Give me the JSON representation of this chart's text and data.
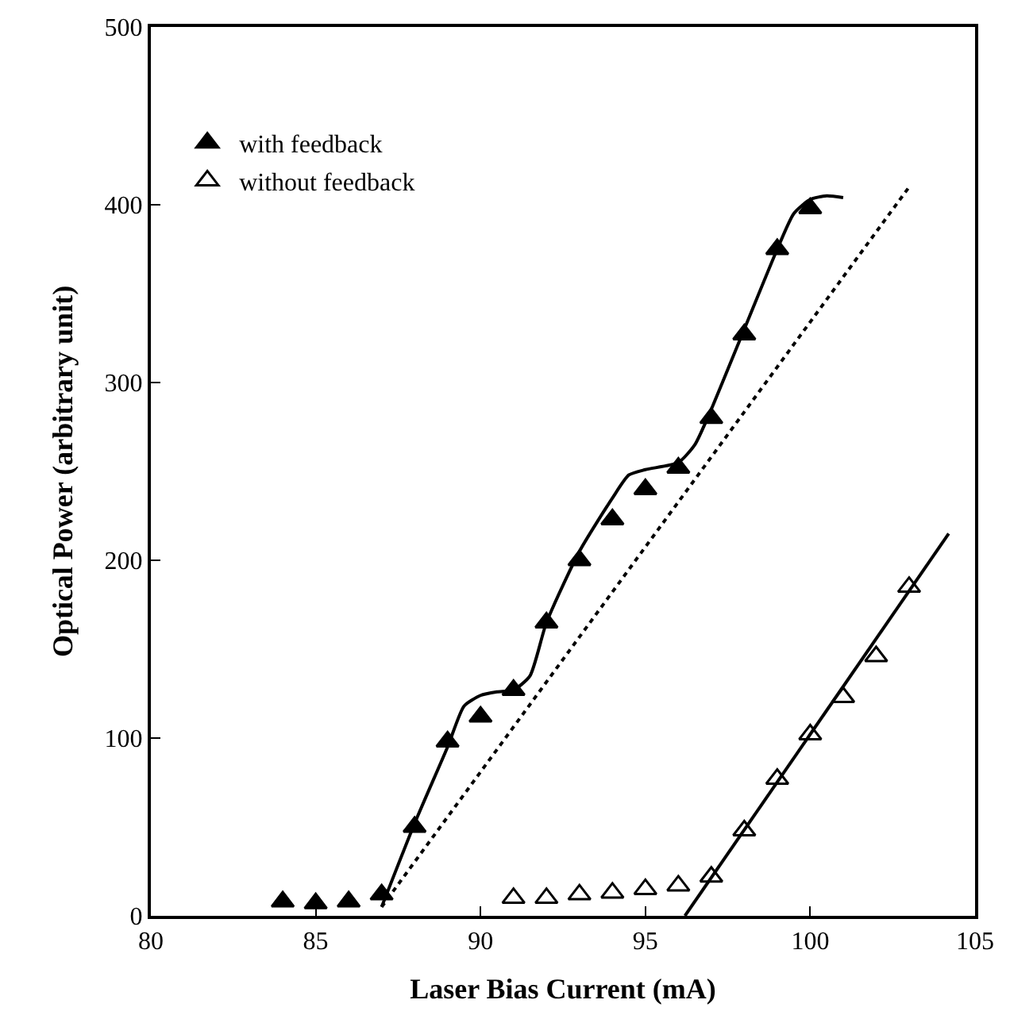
{
  "chart_data": {
    "type": "scatter",
    "xlabel": "Laser Bias Current (mA)",
    "ylabel": "Optical Power (arbitrary unit)",
    "xlim": [
      80,
      105
    ],
    "xticks": [
      80,
      85,
      90,
      95,
      100,
      105
    ],
    "ylim": [
      0,
      500
    ],
    "yticks": [
      0,
      100,
      200,
      300,
      400,
      500
    ],
    "legend": "top left",
    "series": [
      {
        "name": "with feedback",
        "color": "#000000",
        "marker": "triangle",
        "x": [
          84,
          85,
          86,
          87,
          88,
          89,
          90,
          91,
          92,
          93,
          94,
          95,
          96,
          97,
          98,
          99,
          100
        ],
        "values": [
          8,
          7,
          8,
          12,
          50,
          98,
          112,
          127,
          165,
          200,
          223,
          240,
          252,
          280,
          327,
          375,
          398
        ]
      },
      {
        "name": "without feedback",
        "color": "#000000",
        "marker": "triangle",
        "x": [
          91,
          92,
          93,
          94,
          95,
          96,
          97,
          98,
          99,
          100,
          101,
          102,
          103
        ],
        "values": [
          10,
          10,
          12,
          13,
          15,
          17,
          22,
          48,
          77,
          102,
          123,
          146,
          185
        ]
      },
      {
        "type": "line",
        "color": "#000000",
        "line_style": "solid",
        "x": [
          87,
          88,
          89,
          89.5,
          90,
          90.5,
          91,
          91.5,
          92,
          93,
          94,
          94.5,
          95,
          96,
          96.5,
          97,
          98,
          99,
          99.5,
          100,
          100.5,
          101
        ],
        "values": [
          5,
          52,
          95,
          118,
          124,
          126,
          127,
          135,
          165,
          205,
          235,
          248,
          251,
          255,
          265,
          285,
          330,
          375,
          395,
          403,
          405,
          404
        ]
      },
      {
        "type": "line",
        "color": "#000000",
        "line_style": "dotted",
        "x": [
          87,
          103
        ],
        "values": [
          5,
          410
        ]
      },
      {
        "type": "line",
        "color": "#000000",
        "line_style": "solid",
        "x": [
          96.2,
          104.2
        ],
        "values": [
          0,
          215
        ]
      }
    ]
  }
}
